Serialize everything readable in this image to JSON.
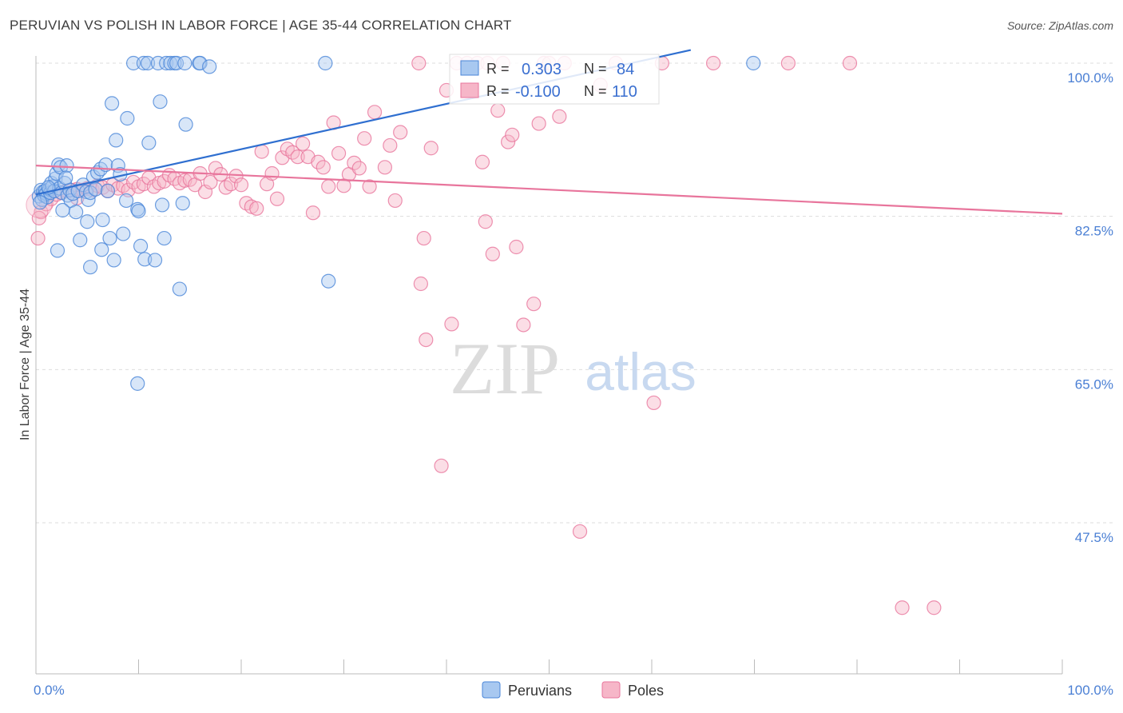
{
  "title": "PERUVIAN VS POLISH IN LABOR FORCE | AGE 35-44 CORRELATION CHART",
  "source": "Source: ZipAtlas.com",
  "watermark": {
    "zip": "ZIP",
    "atlas": "atlas"
  },
  "legend_box": {
    "rows": [
      {
        "r_label": "R =",
        "r_value": "0.303",
        "n_label": "N =",
        "n_value": "84",
        "color": "#a8c8f0"
      },
      {
        "r_label": "R =",
        "r_value": "-0.100",
        "n_label": "N =",
        "n_value": "110",
        "color": "#f6b6c8"
      }
    ]
  },
  "bottom_legend": [
    {
      "label": "Peruvians",
      "color": "#a8c8f0"
    },
    {
      "label": "Poles",
      "color": "#f6b6c8"
    }
  ],
  "chart_data": {
    "type": "scatter",
    "title": "PERUVIAN VS POLISH IN LABOR FORCE | AGE 35-44 CORRELATION CHART",
    "ylabel": "In Labor Force | Age 35-44",
    "xlabel": "",
    "x_tick_labels": [
      "0.0%",
      "100.0%"
    ],
    "y_tick_labels": [
      "100.0%",
      "82.5%",
      "65.0%",
      "47.5%"
    ],
    "y_ticks": [
      100.0,
      82.5,
      65.0,
      47.5
    ],
    "xlim": [
      0,
      100
    ],
    "ylim": [
      30,
      103
    ],
    "grid": true,
    "series": [
      {
        "name": "Peruvians",
        "color": "#4a86d8",
        "fill": "#a8c8f0",
        "trend": {
          "x": [
            0,
            63.8
          ],
          "y": [
            85.0,
            101.5
          ]
        },
        "points": [
          [
            0.3,
            84.8
          ],
          [
            0.5,
            85.5
          ],
          [
            0.6,
            84.4
          ],
          [
            0.7,
            85.3
          ],
          [
            0.8,
            84.9
          ],
          [
            0.9,
            85.4
          ],
          [
            1.0,
            85.1
          ],
          [
            1.1,
            84.7
          ],
          [
            1.3,
            85.6
          ],
          [
            1.4,
            85.2
          ],
          [
            1.5,
            86.3
          ],
          [
            1.6,
            85.9
          ],
          [
            1.8,
            85.4
          ],
          [
            1.9,
            86.8
          ],
          [
            2.0,
            87.4
          ],
          [
            2.2,
            88.4
          ],
          [
            2.3,
            85.7
          ],
          [
            2.4,
            88.1
          ],
          [
            2.5,
            85.2
          ],
          [
            2.8,
            86.3
          ],
          [
            3.0,
            88.3
          ],
          [
            3.1,
            84.9
          ],
          [
            3.3,
            85.5
          ],
          [
            3.4,
            84.3
          ],
          [
            3.6,
            85.1
          ],
          [
            3.9,
            83.0
          ],
          [
            4.1,
            85.4
          ],
          [
            4.3,
            79.8
          ],
          [
            4.6,
            86.1
          ],
          [
            4.9,
            85.3
          ],
          [
            5.1,
            84.4
          ],
          [
            5.3,
            85.2
          ],
          [
            5.6,
            87.0
          ],
          [
            5.8,
            85.6
          ],
          [
            6.0,
            87.5
          ],
          [
            6.3,
            87.9
          ],
          [
            6.5,
            82.1
          ],
          [
            6.8,
            88.4
          ],
          [
            7.0,
            85.4
          ],
          [
            7.2,
            80.0
          ],
          [
            7.4,
            95.4
          ],
          [
            7.6,
            77.5
          ],
          [
            7.8,
            91.2
          ],
          [
            8.0,
            88.3
          ],
          [
            8.2,
            87.3
          ],
          [
            8.5,
            80.5
          ],
          [
            8.8,
            84.3
          ],
          [
            8.9,
            93.7
          ],
          [
            9.5,
            100.0
          ],
          [
            9.9,
            83.3
          ],
          [
            10.0,
            83.1
          ],
          [
            10.2,
            79.1
          ],
          [
            10.5,
            100.0
          ],
          [
            10.6,
            77.6
          ],
          [
            10.9,
            100.0
          ],
          [
            11.0,
            90.9
          ],
          [
            11.6,
            77.5
          ],
          [
            11.9,
            100.0
          ],
          [
            12.1,
            95.6
          ],
          [
            12.3,
            83.8
          ],
          [
            12.5,
            80.0
          ],
          [
            12.7,
            100.0
          ],
          [
            13.1,
            100.0
          ],
          [
            13.5,
            100.0
          ],
          [
            13.7,
            100.0
          ],
          [
            14.0,
            74.2
          ],
          [
            14.3,
            84.0
          ],
          [
            14.5,
            100.0
          ],
          [
            14.6,
            93.0
          ],
          [
            15.9,
            100.0
          ],
          [
            16.0,
            100.0
          ],
          [
            16.9,
            99.6
          ],
          [
            28.5,
            75.1
          ],
          [
            28.2,
            100.0
          ],
          [
            69.9,
            100.0
          ],
          [
            9.9,
            63.4
          ],
          [
            5.3,
            76.7
          ],
          [
            6.4,
            78.7
          ],
          [
            2.1,
            78.6
          ],
          [
            5.0,
            81.9
          ],
          [
            2.9,
            86.9
          ],
          [
            0.4,
            84.1
          ],
          [
            1.2,
            85.8
          ],
          [
            2.6,
            83.2
          ]
        ]
      },
      {
        "name": "Poles",
        "color": "#e8759c",
        "fill": "#f6b6c8",
        "trend": {
          "x": [
            0,
            100
          ],
          "y": [
            88.3,
            82.8
          ]
        },
        "points": [
          [
            0.2,
            80.0
          ],
          [
            0.5,
            83.0
          ],
          [
            1.0,
            83.9
          ],
          [
            1.5,
            84.5
          ],
          [
            2.0,
            85.0
          ],
          [
            2.5,
            85.2
          ],
          [
            3.0,
            85.4
          ],
          [
            3.5,
            85.5
          ],
          [
            4.0,
            85.6
          ],
          [
            4.5,
            85.5
          ],
          [
            5.0,
            85.7
          ],
          [
            5.5,
            85.5
          ],
          [
            6.0,
            86.0
          ],
          [
            6.5,
            85.8
          ],
          [
            7.0,
            85.4
          ],
          [
            7.5,
            86.1
          ],
          [
            8.0,
            85.7
          ],
          [
            8.5,
            86.0
          ],
          [
            9.0,
            85.5
          ],
          [
            9.5,
            86.4
          ],
          [
            10.0,
            85.9
          ],
          [
            10.5,
            86.2
          ],
          [
            11.0,
            86.9
          ],
          [
            11.5,
            85.9
          ],
          [
            12.0,
            86.3
          ],
          [
            12.5,
            86.5
          ],
          [
            13.0,
            87.2
          ],
          [
            13.5,
            86.8
          ],
          [
            14.0,
            86.3
          ],
          [
            14.5,
            86.6
          ],
          [
            15.0,
            86.7
          ],
          [
            15.5,
            86.1
          ],
          [
            16.0,
            87.4
          ],
          [
            16.5,
            85.3
          ],
          [
            17.0,
            86.4
          ],
          [
            17.5,
            88.0
          ],
          [
            18.0,
            87.3
          ],
          [
            18.5,
            85.8
          ],
          [
            19.0,
            86.2
          ],
          [
            19.5,
            87.1
          ],
          [
            20.0,
            86.1
          ],
          [
            20.5,
            84.0
          ],
          [
            21.0,
            83.6
          ],
          [
            21.5,
            83.4
          ],
          [
            22.0,
            89.9
          ],
          [
            22.5,
            86.2
          ],
          [
            23.0,
            87.4
          ],
          [
            23.5,
            84.5
          ],
          [
            24.0,
            89.2
          ],
          [
            24.5,
            90.2
          ],
          [
            25.0,
            89.8
          ],
          [
            25.5,
            89.3
          ],
          [
            26.0,
            90.8
          ],
          [
            26.5,
            89.3
          ],
          [
            27.0,
            82.9
          ],
          [
            27.5,
            88.7
          ],
          [
            28.0,
            88.1
          ],
          [
            28.5,
            85.9
          ],
          [
            29.0,
            93.2
          ],
          [
            29.5,
            89.7
          ],
          [
            30.0,
            86.0
          ],
          [
            30.5,
            87.3
          ],
          [
            31.0,
            88.6
          ],
          [
            31.5,
            88.0
          ],
          [
            32.0,
            91.4
          ],
          [
            32.5,
            85.9
          ],
          [
            33.0,
            94.4
          ],
          [
            34.0,
            88.1
          ],
          [
            34.5,
            90.6
          ],
          [
            35.0,
            84.3
          ],
          [
            35.5,
            92.1
          ],
          [
            37.3,
            100.0
          ],
          [
            37.5,
            74.8
          ],
          [
            37.8,
            80.0
          ],
          [
            38.0,
            68.4
          ],
          [
            38.5,
            90.3
          ],
          [
            39.5,
            54.0
          ],
          [
            40.0,
            96.9
          ],
          [
            40.5,
            70.2
          ],
          [
            41.0,
            100.0
          ],
          [
            42.0,
            100.0
          ],
          [
            43.0,
            100.0
          ],
          [
            43.5,
            88.7
          ],
          [
            43.8,
            81.9
          ],
          [
            44.0,
            100.0
          ],
          [
            44.5,
            78.2
          ],
          [
            45.0,
            94.6
          ],
          [
            45.5,
            100.0
          ],
          [
            46.0,
            91.0
          ],
          [
            46.4,
            91.8
          ],
          [
            46.8,
            79.0
          ],
          [
            47.5,
            70.1
          ],
          [
            48.5,
            72.5
          ],
          [
            49.0,
            93.1
          ],
          [
            49.5,
            100.0
          ],
          [
            50.0,
            100.0
          ],
          [
            51.0,
            93.9
          ],
          [
            51.5,
            100.0
          ],
          [
            53.0,
            46.5
          ],
          [
            56.5,
            100.0
          ],
          [
            55.0,
            97.5
          ],
          [
            60.2,
            61.2
          ],
          [
            61.0,
            100.0
          ],
          [
            66.0,
            100.0
          ],
          [
            73.3,
            100.0
          ],
          [
            79.3,
            100.0
          ],
          [
            84.4,
            37.8
          ],
          [
            87.5,
            37.8
          ],
          [
            0.3,
            82.3
          ],
          [
            4.0,
            84.6
          ]
        ]
      }
    ]
  }
}
